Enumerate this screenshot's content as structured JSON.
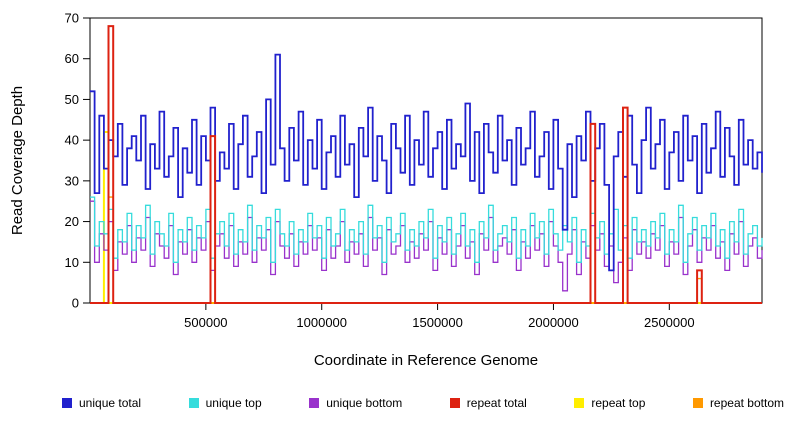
{
  "chart_data": {
    "type": "line",
    "title": "",
    "xlabel": "Coordinate in Reference Genome",
    "ylabel": "Read Coverage Depth",
    "xlim": [
      0,
      2900000
    ],
    "ylim": [
      0,
      70
    ],
    "x_start": 0,
    "x_step": 20000,
    "x_tick_values": [
      500000,
      1000000,
      1500000,
      2000000,
      2500000
    ],
    "x_tick_labels": [
      "500000",
      "1000000",
      "1500000",
      "2000000",
      "2500000"
    ],
    "y_tick_values": [
      0,
      10,
      20,
      30,
      40,
      50,
      60,
      70
    ],
    "grid": false,
    "legend_position": "bottom",
    "series": [
      {
        "name": "unique total",
        "color": "#2121cd",
        "values": [
          52,
          27,
          46,
          33,
          40,
          36,
          44,
          29,
          38,
          41,
          35,
          46,
          28,
          39,
          33,
          47,
          31,
          36,
          43,
          26,
          38,
          32,
          45,
          29,
          41,
          35,
          48,
          30,
          37,
          33,
          44,
          28,
          39,
          46,
          31,
          36,
          42,
          27,
          50,
          34,
          61,
          38,
          30,
          43,
          35,
          47,
          29,
          40,
          33,
          45,
          28,
          37,
          41,
          31,
          46,
          34,
          39,
          26,
          43,
          36,
          48,
          30,
          41,
          35,
          27,
          44,
          38,
          32,
          46,
          29,
          40,
          34,
          47,
          31,
          38,
          42,
          28,
          45,
          33,
          39,
          36,
          49,
          30,
          42,
          27,
          44,
          37,
          32,
          46,
          35,
          40,
          29,
          43,
          34,
          38,
          47,
          31,
          36,
          42,
          28,
          45,
          33,
          18,
          39,
          26,
          41,
          35,
          47,
          30,
          38,
          44,
          29,
          8,
          36,
          42,
          31,
          46,
          34,
          27,
          40,
          48,
          33,
          39,
          45,
          28,
          37,
          42,
          30,
          46,
          35,
          41,
          27,
          44,
          32,
          38,
          47,
          31,
          43,
          36,
          29,
          45,
          34,
          40,
          33,
          37,
          32
        ]
      },
      {
        "name": "unique top",
        "color": "#36dcdc",
        "values": [
          26,
          14,
          20,
          17,
          23,
          11,
          18,
          15,
          22,
          13,
          19,
          16,
          24,
          12,
          20,
          17,
          14,
          22,
          10,
          18,
          15,
          21,
          13,
          19,
          16,
          23,
          11,
          17,
          20,
          14,
          22,
          12,
          18,
          15,
          24,
          13,
          19,
          16,
          21,
          10,
          23,
          17,
          14,
          20,
          12,
          18,
          15,
          22,
          16,
          19,
          11,
          21,
          14,
          17,
          23,
          13,
          18,
          15,
          20,
          12,
          24,
          16,
          19,
          10,
          21,
          15,
          17,
          22,
          13,
          18,
          14,
          20,
          16,
          23,
          11,
          19,
          15,
          21,
          12,
          17,
          22,
          14,
          18,
          10,
          20,
          16,
          24,
          13,
          17,
          19,
          15,
          21,
          11,
          18,
          14,
          22,
          16,
          20,
          12,
          23,
          17,
          13,
          19,
          15,
          21,
          10,
          18,
          14,
          22,
          16,
          20,
          12,
          17,
          23,
          13,
          19,
          11,
          21,
          15,
          18,
          14,
          20,
          16,
          22,
          12,
          18,
          15,
          24,
          10,
          17,
          21,
          13,
          19,
          16,
          22,
          14,
          18,
          11,
          20,
          15,
          23,
          12,
          17,
          19,
          14,
          16
        ]
      },
      {
        "name": "unique bottom",
        "color": "#9932cc",
        "values": [
          25,
          10,
          17,
          13,
          20,
          8,
          15,
          12,
          19,
          10,
          16,
          13,
          21,
          9,
          17,
          14,
          11,
          19,
          7,
          15,
          12,
          18,
          10,
          16,
          13,
          20,
          8,
          14,
          17,
          11,
          19,
          9,
          15,
          12,
          21,
          10,
          16,
          13,
          18,
          7,
          20,
          14,
          11,
          17,
          9,
          15,
          12,
          19,
          13,
          16,
          8,
          18,
          11,
          14,
          20,
          10,
          15,
          12,
          17,
          9,
          21,
          13,
          16,
          7,
          18,
          12,
          14,
          19,
          10,
          15,
          11,
          17,
          13,
          20,
          8,
          16,
          12,
          18,
          9,
          14,
          19,
          11,
          15,
          7,
          17,
          13,
          21,
          10,
          14,
          16,
          12,
          18,
          8,
          15,
          11,
          19,
          13,
          17,
          9,
          20,
          14,
          10,
          3,
          12,
          18,
          7,
          15,
          11,
          19,
          13,
          17,
          9,
          14,
          5,
          10,
          16,
          8,
          18,
          12,
          15,
          11,
          17,
          13,
          19,
          9,
          15,
          12,
          21,
          7,
          14,
          18,
          10,
          16,
          13,
          19,
          11,
          15,
          8,
          17,
          12,
          20,
          9,
          14,
          16,
          11,
          13
        ]
      },
      {
        "name": "repeat total",
        "color": "#dd2211",
        "base": 0,
        "spikes": [
          [
            80000,
            68
          ],
          [
            520000,
            41
          ],
          [
            2160000,
            44
          ],
          [
            2300000,
            48
          ],
          [
            2620000,
            8
          ]
        ]
      },
      {
        "name": "repeat top",
        "color": "#ffee00",
        "base": 0,
        "spikes": [
          [
            60000,
            42
          ]
        ]
      },
      {
        "name": "repeat bottom",
        "color": "#ff9900",
        "base": 0,
        "spikes": [
          [
            80000,
            26
          ],
          [
            2620000,
            6
          ]
        ]
      }
    ]
  }
}
